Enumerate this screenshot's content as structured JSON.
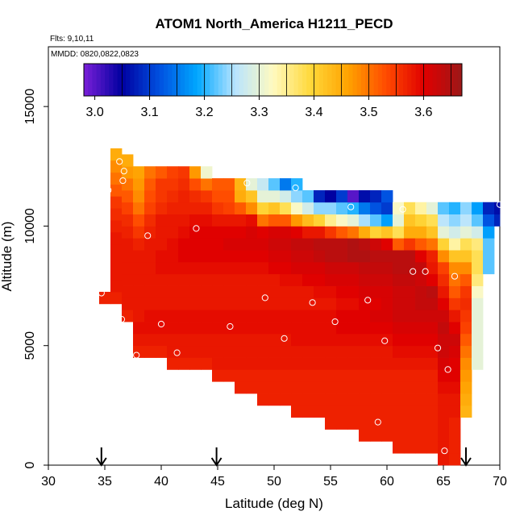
{
  "chart_data": {
    "type": "heatmap",
    "title": "ATOM1 North_America H1211_PECD",
    "flights_label": "Flts: 9,10,11",
    "dates_label": "MMDD: 0820,0822,0823",
    "xlabel": "Latitude (deg N)",
    "ylabel": "Altitude (m)",
    "xlim": [
      30,
      70
    ],
    "ylim": [
      0,
      17500
    ],
    "x_ticks": [
      30,
      35,
      40,
      45,
      50,
      55,
      60,
      65,
      70
    ],
    "x_tick_labels": [
      "30",
      "35",
      "40",
      "45",
      "50",
      "55",
      "60",
      "65",
      "70"
    ],
    "y_ticks": [
      0,
      5000,
      10000,
      15000
    ],
    "y_tick_labels": [
      "0",
      "5000",
      "10000",
      "15000"
    ],
    "colorbar": {
      "range": [
        2.98,
        3.67
      ],
      "ticks": [
        3.0,
        3.1,
        3.2,
        3.3,
        3.4,
        3.5,
        3.6
      ],
      "tick_labels": [
        "3.0",
        "3.1",
        "3.2",
        "3.3",
        "3.4",
        "3.5",
        "3.6"
      ],
      "colors": [
        "#7a1fd8",
        "#0000a0",
        "#0050e0",
        "#00a8ff",
        "#b8e4ff",
        "#fffac0",
        "#ffd83a",
        "#ffa200",
        "#ff4a00",
        "#e00000",
        "#9c1818"
      ]
    },
    "arrows_latitude": [
      34.7,
      44.9,
      67.0
    ],
    "cell_width_deg": 1.0,
    "cell_height_m": 500,
    "columns": [
      {
        "lat": 35,
        "base": 6750,
        "top": 7500,
        "vals": [
          3.57
        ]
      },
      {
        "lat": 36,
        "base": 6750,
        "top": 13000,
        "vals": [
          3.57,
          3.58,
          3.58,
          3.58,
          3.58,
          3.58,
          3.57,
          3.56,
          3.55,
          3.52,
          3.5,
          3.48,
          3.45
        ]
      },
      {
        "lat": 37,
        "base": 6000,
        "top": 13000,
        "vals": [
          3.57,
          3.58,
          3.58,
          3.58,
          3.58,
          3.58,
          3.58,
          3.57,
          3.56,
          3.54,
          3.52,
          3.5,
          3.47,
          3.45
        ]
      },
      {
        "lat": 38,
        "base": 4500,
        "top": 12500,
        "vals": [
          3.57,
          3.58,
          3.59,
          3.58,
          3.58,
          3.58,
          3.58,
          3.58,
          3.58,
          3.57,
          3.55,
          3.53,
          3.5,
          3.48,
          3.47,
          3.46
        ]
      },
      {
        "lat": 39,
        "base": 4500,
        "top": 12500,
        "vals": [
          3.57,
          3.58,
          3.59,
          3.59,
          3.58,
          3.58,
          3.58,
          3.58,
          3.58,
          3.58,
          3.57,
          3.56,
          3.54,
          3.53,
          3.52,
          3.5
        ]
      },
      {
        "lat": 40,
        "base": 4500,
        "top": 12500,
        "vals": [
          3.57,
          3.58,
          3.59,
          3.59,
          3.58,
          3.58,
          3.58,
          3.59,
          3.59,
          3.58,
          3.58,
          3.58,
          3.56,
          3.55,
          3.55,
          3.52
        ]
      },
      {
        "lat": 41,
        "base": 4000,
        "top": 12500,
        "vals": [
          3.57,
          3.58,
          3.58,
          3.59,
          3.59,
          3.58,
          3.58,
          3.58,
          3.59,
          3.59,
          3.59,
          3.58,
          3.58,
          3.57,
          3.56,
          3.55,
          3.54
        ]
      },
      {
        "lat": 42,
        "base": 4000,
        "top": 12500,
        "vals": [
          3.57,
          3.58,
          3.58,
          3.59,
          3.59,
          3.58,
          3.58,
          3.58,
          3.59,
          3.6,
          3.6,
          3.59,
          3.58,
          3.57,
          3.57,
          3.56,
          3.55
        ]
      },
      {
        "lat": 43,
        "base": 4000,
        "top": 12500,
        "vals": [
          3.57,
          3.58,
          3.58,
          3.59,
          3.59,
          3.58,
          3.58,
          3.58,
          3.59,
          3.6,
          3.6,
          3.6,
          3.59,
          3.57,
          3.56,
          3.53,
          3.47
        ]
      },
      {
        "lat": 44,
        "base": 4000,
        "top": 12500,
        "vals": [
          3.57,
          3.58,
          3.58,
          3.59,
          3.59,
          3.58,
          3.58,
          3.58,
          3.59,
          3.6,
          3.6,
          3.6,
          3.59,
          3.57,
          3.55,
          3.5,
          3.31
        ]
      },
      {
        "lat": 45,
        "base": 3500,
        "top": 12000,
        "vals": [
          3.57,
          3.58,
          3.58,
          3.58,
          3.59,
          3.59,
          3.58,
          3.58,
          3.58,
          3.59,
          3.6,
          3.6,
          3.6,
          3.58,
          3.55,
          3.53,
          3.52
        ]
      },
      {
        "lat": 46,
        "base": 3500,
        "top": 12000,
        "vals": [
          3.57,
          3.58,
          3.58,
          3.58,
          3.59,
          3.59,
          3.58,
          3.58,
          3.58,
          3.59,
          3.6,
          3.61,
          3.6,
          3.58,
          3.54,
          3.53,
          3.52
        ]
      },
      {
        "lat": 47,
        "base": 3000,
        "top": 12000,
        "vals": [
          3.57,
          3.57,
          3.58,
          3.58,
          3.58,
          3.59,
          3.59,
          3.58,
          3.58,
          3.58,
          3.59,
          3.6,
          3.61,
          3.6,
          3.58,
          3.52,
          3.45,
          3.44
        ]
      },
      {
        "lat": 48,
        "base": 3000,
        "top": 12000,
        "vals": [
          3.57,
          3.57,
          3.58,
          3.58,
          3.58,
          3.59,
          3.59,
          3.58,
          3.58,
          3.58,
          3.59,
          3.6,
          3.61,
          3.61,
          3.59,
          3.48,
          3.42,
          3.3
        ]
      },
      {
        "lat": 49,
        "base": 2500,
        "top": 12000,
        "vals": [
          3.57,
          3.57,
          3.57,
          3.58,
          3.58,
          3.58,
          3.59,
          3.59,
          3.58,
          3.58,
          3.58,
          3.59,
          3.6,
          3.61,
          3.6,
          3.5,
          3.4,
          3.3,
          3.27
        ]
      },
      {
        "lat": 50,
        "base": 2500,
        "top": 12000,
        "vals": [
          3.57,
          3.57,
          3.57,
          3.58,
          3.58,
          3.58,
          3.59,
          3.59,
          3.58,
          3.58,
          3.58,
          3.6,
          3.61,
          3.62,
          3.61,
          3.52,
          3.42,
          3.3,
          3.22
        ]
      },
      {
        "lat": 51,
        "base": 2500,
        "top": 12000,
        "vals": [
          3.57,
          3.57,
          3.57,
          3.58,
          3.58,
          3.58,
          3.59,
          3.59,
          3.58,
          3.58,
          3.59,
          3.6,
          3.61,
          3.62,
          3.61,
          3.52,
          3.38,
          3.28,
          3.15
        ]
      },
      {
        "lat": 52,
        "base": 2000,
        "top": 12000,
        "vals": [
          3.57,
          3.57,
          3.57,
          3.57,
          3.58,
          3.58,
          3.59,
          3.59,
          3.59,
          3.58,
          3.58,
          3.59,
          3.61,
          3.62,
          3.63,
          3.6,
          3.47,
          3.32,
          3.24,
          3.2
        ]
      },
      {
        "lat": 53,
        "base": 2000,
        "top": 11500,
        "vals": [
          3.57,
          3.57,
          3.57,
          3.57,
          3.58,
          3.58,
          3.59,
          3.59,
          3.59,
          3.58,
          3.58,
          3.6,
          3.61,
          3.62,
          3.63,
          3.58,
          3.43,
          3.28,
          3.22
        ]
      },
      {
        "lat": 54,
        "base": 2000,
        "top": 11500,
        "vals": [
          3.57,
          3.57,
          3.57,
          3.57,
          3.58,
          3.58,
          3.59,
          3.59,
          3.59,
          3.58,
          3.59,
          3.6,
          3.61,
          3.63,
          3.64,
          3.58,
          3.4,
          3.24,
          3.08
        ]
      },
      {
        "lat": 55,
        "base": 1500,
        "top": 11500,
        "vals": [
          3.57,
          3.57,
          3.57,
          3.57,
          3.57,
          3.58,
          3.58,
          3.59,
          3.59,
          3.59,
          3.58,
          3.59,
          3.61,
          3.62,
          3.64,
          3.64,
          3.55,
          3.35,
          3.24,
          3.05
        ]
      },
      {
        "lat": 56,
        "base": 1500,
        "top": 11500,
        "vals": [
          3.57,
          3.57,
          3.57,
          3.57,
          3.57,
          3.58,
          3.58,
          3.59,
          3.6,
          3.6,
          3.59,
          3.6,
          3.61,
          3.62,
          3.64,
          3.64,
          3.52,
          3.32,
          3.22,
          3.1
        ]
      },
      {
        "lat": 57,
        "base": 1500,
        "top": 11500,
        "vals": [
          3.57,
          3.57,
          3.57,
          3.57,
          3.57,
          3.58,
          3.58,
          3.59,
          3.6,
          3.6,
          3.59,
          3.6,
          3.61,
          3.62,
          3.65,
          3.65,
          3.5,
          3.3,
          3.2,
          3.0
        ]
      },
      {
        "lat": 58,
        "base": 1000,
        "top": 11500,
        "vals": [
          3.57,
          3.57,
          3.57,
          3.57,
          3.57,
          3.57,
          3.58,
          3.58,
          3.59,
          3.6,
          3.6,
          3.6,
          3.61,
          3.62,
          3.63,
          3.65,
          3.64,
          3.45,
          3.25,
          3.15,
          3.06
        ]
      },
      {
        "lat": 59,
        "base": 1000,
        "top": 11500,
        "vals": [
          3.57,
          3.57,
          3.57,
          3.57,
          3.57,
          3.57,
          3.58,
          3.58,
          3.59,
          3.6,
          3.61,
          3.6,
          3.61,
          3.62,
          3.63,
          3.64,
          3.62,
          3.4,
          3.22,
          3.12,
          3.08
        ]
      },
      {
        "lat": 60,
        "base": 1000,
        "top": 11500,
        "vals": [
          3.57,
          3.57,
          3.57,
          3.57,
          3.57,
          3.57,
          3.58,
          3.58,
          3.59,
          3.6,
          3.61,
          3.61,
          3.61,
          3.62,
          3.63,
          3.64,
          3.6,
          3.42,
          3.18,
          3.1,
          3.12
        ]
      },
      {
        "lat": 61,
        "base": 500,
        "top": 11000,
        "vals": [
          3.57,
          3.57,
          3.57,
          3.57,
          3.57,
          3.57,
          3.57,
          3.58,
          3.59,
          3.6,
          3.61,
          3.62,
          3.62,
          3.62,
          3.63,
          3.64,
          3.64,
          3.52,
          3.38,
          3.3,
          3.32
        ]
      },
      {
        "lat": 62,
        "base": 500,
        "top": 11000,
        "vals": [
          3.57,
          3.57,
          3.57,
          3.57,
          3.57,
          3.57,
          3.57,
          3.58,
          3.59,
          3.6,
          3.61,
          3.62,
          3.62,
          3.62,
          3.63,
          3.64,
          3.64,
          3.55,
          3.45,
          3.42,
          3.38
        ]
      },
      {
        "lat": 63,
        "base": 500,
        "top": 11000,
        "vals": [
          3.57,
          3.57,
          3.57,
          3.57,
          3.57,
          3.57,
          3.57,
          3.58,
          3.59,
          3.6,
          3.61,
          3.62,
          3.63,
          3.63,
          3.62,
          3.63,
          3.6,
          3.52,
          3.45,
          3.4,
          3.34
        ]
      },
      {
        "lat": 64,
        "base": 500,
        "top": 11000,
        "vals": [
          3.57,
          3.57,
          3.57,
          3.57,
          3.57,
          3.57,
          3.57,
          3.58,
          3.59,
          3.6,
          3.61,
          3.62,
          3.63,
          3.64,
          3.6,
          3.58,
          3.57,
          3.5,
          3.42,
          3.38,
          3.3
        ]
      },
      {
        "lat": 65,
        "base": 0,
        "top": 11000,
        "vals": [
          3.58,
          3.58,
          3.58,
          3.58,
          3.58,
          3.58,
          3.59,
          3.6,
          3.61,
          3.62,
          3.62,
          3.63,
          3.62,
          3.6,
          3.58,
          3.56,
          3.54,
          3.48,
          3.4,
          3.3,
          3.26,
          3.22
        ]
      },
      {
        "lat": 66,
        "base": 0,
        "top": 11000,
        "vals": [
          3.57,
          3.57,
          3.57,
          3.57,
          3.58,
          3.58,
          3.59,
          3.6,
          3.6,
          3.61,
          3.62,
          3.6,
          3.58,
          3.55,
          3.52,
          3.5,
          3.48,
          3.42,
          3.34,
          3.28,
          3.24,
          3.2
        ]
      },
      {
        "lat": 67,
        "base": 2000,
        "top": 11000,
        "vals": [
          3.44,
          3.45,
          3.46,
          3.47,
          3.48,
          3.5,
          3.52,
          3.54,
          3.55,
          3.56,
          3.55,
          3.52,
          3.48,
          3.42,
          3.38,
          3.3,
          3.26,
          3.24
        ]
      },
      {
        "lat": 68,
        "base": 4000,
        "top": 11000,
        "vals": [
          3.3,
          3.3,
          3.3,
          3.3,
          3.3,
          3.3,
          3.32,
          3.36,
          3.38,
          3.38,
          3.36,
          3.28,
          3.22,
          3.18
        ]
      },
      {
        "lat": 69,
        "base": 8000,
        "top": 11000,
        "vals": [
          3.22,
          3.22,
          3.22,
          3.18,
          3.12,
          3.08
        ]
      },
      {
        "lat": 70,
        "base": 10000,
        "top": 11000,
        "vals": [
          3.08,
          3.06
        ]
      }
    ],
    "points": [
      {
        "lat": 35.0,
        "alt": 12700
      },
      {
        "lat": 36.3,
        "alt": 12700
      },
      {
        "lat": 36.7,
        "alt": 12300
      },
      {
        "lat": 36.6,
        "alt": 11900
      },
      {
        "lat": 35.3,
        "alt": 11500
      },
      {
        "lat": 34.7,
        "alt": 7200
      },
      {
        "lat": 36.5,
        "alt": 6100
      },
      {
        "lat": 37.8,
        "alt": 4600
      },
      {
        "lat": 38.8,
        "alt": 9600
      },
      {
        "lat": 40.0,
        "alt": 5900
      },
      {
        "lat": 41.4,
        "alt": 4700
      },
      {
        "lat": 43.1,
        "alt": 9900
      },
      {
        "lat": 46.1,
        "alt": 5800
      },
      {
        "lat": 47.6,
        "alt": 11800
      },
      {
        "lat": 49.2,
        "alt": 7000
      },
      {
        "lat": 50.9,
        "alt": 5300
      },
      {
        "lat": 51.9,
        "alt": 11600
      },
      {
        "lat": 53.4,
        "alt": 6800
      },
      {
        "lat": 55.4,
        "alt": 6000
      },
      {
        "lat": 56.8,
        "alt": 10800
      },
      {
        "lat": 58.3,
        "alt": 6900
      },
      {
        "lat": 59.2,
        "alt": 1800
      },
      {
        "lat": 59.8,
        "alt": 5200
      },
      {
        "lat": 61.4,
        "alt": 10700
      },
      {
        "lat": 62.3,
        "alt": 8100
      },
      {
        "lat": 63.4,
        "alt": 8100
      },
      {
        "lat": 64.5,
        "alt": 4900
      },
      {
        "lat": 65.4,
        "alt": 4000
      },
      {
        "lat": 65.1,
        "alt": 600
      },
      {
        "lat": 66.0,
        "alt": 7900
      },
      {
        "lat": 70.0,
        "alt": 10900
      }
    ]
  }
}
